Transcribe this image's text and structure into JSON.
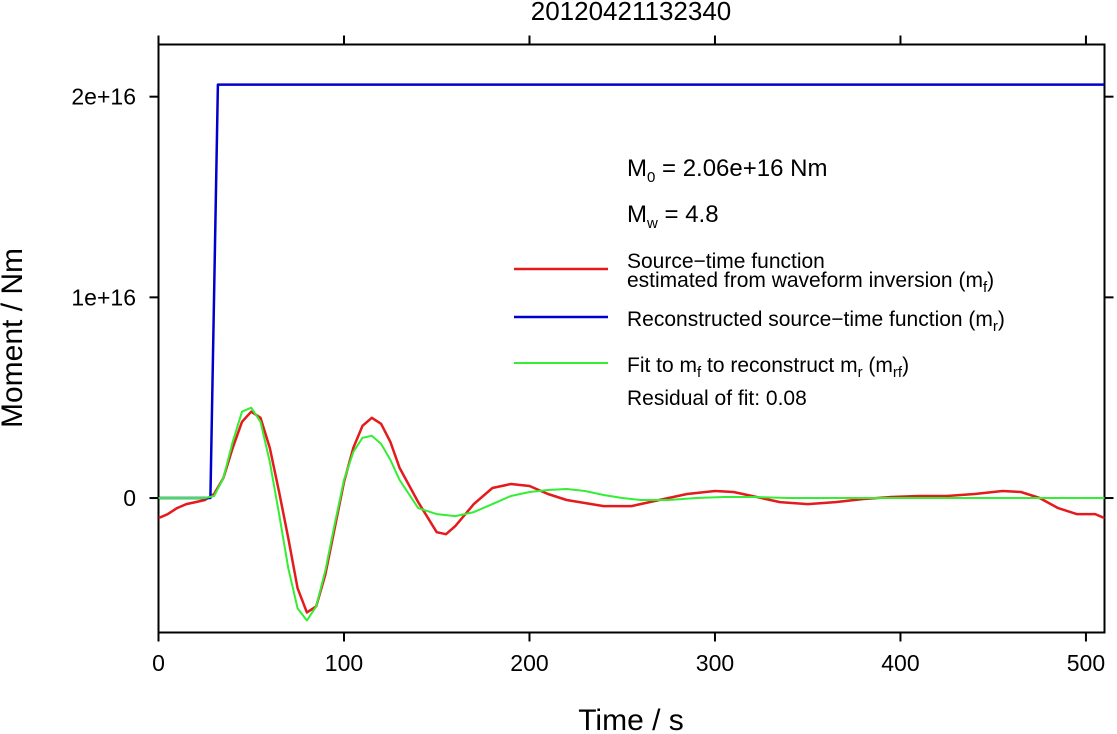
{
  "chart_data": {
    "type": "line",
    "title": "20120421132340",
    "xlabel": "Time / s",
    "ylabel": "Moment / Nm",
    "xlim": [
      0,
      510
    ],
    "ylim": [
      -6700000000000000.0,
      2.26e+16
    ],
    "x_ticks": [
      0,
      100,
      200,
      300,
      400,
      500
    ],
    "x_tick_labels": [
      "0",
      "100",
      "200",
      "300",
      "400",
      "500"
    ],
    "y_ticks": [
      0,
      1e+16,
      2e+16
    ],
    "y_tick_labels": [
      "0",
      "1e+16",
      "2e+16"
    ],
    "grid": false,
    "legend_position": "right",
    "annotations": {
      "m0": {
        "prefix": "M",
        "sub": "0",
        "suffix": " = 2.06e+16 Nm"
      },
      "mw": {
        "prefix": "M",
        "sub": "w",
        "suffix": " = 4.8"
      },
      "residual": "Residual of fit: 0.08"
    },
    "legend": [
      {
        "key": "red",
        "color": "#e41a1c",
        "line1": "Source−time function",
        "line2_prefix": "estimated from waveform inversion (m",
        "line2_sub": "f",
        "line2_suffix": ")"
      },
      {
        "key": "blue",
        "color": "#0000cc",
        "prefix": "Reconstructed source−time function (m",
        "sub": "r",
        "suffix": ")"
      },
      {
        "key": "green",
        "color": "#33ee33",
        "prefix": "Fit to m",
        "sub": "f",
        "middle": " to reconstruct m",
        "sub2": "r",
        "middle2": " (m",
        "sub3": "rf",
        "suffix": ")"
      }
    ],
    "series": [
      {
        "key": "red",
        "color": "#e41a1c",
        "x": [
          0,
          5,
          10,
          15,
          20,
          25,
          30,
          35,
          40,
          45,
          50,
          55,
          60,
          65,
          70,
          75,
          80,
          85,
          90,
          95,
          100,
          105,
          110,
          115,
          120,
          125,
          130,
          140,
          150,
          155,
          160,
          170,
          180,
          190,
          200,
          210,
          220,
          240,
          255,
          270,
          285,
          300,
          310,
          320,
          335,
          350,
          365,
          380,
          395,
          410,
          425,
          440,
          455,
          465,
          475,
          485,
          495,
          505,
          510
        ],
        "y": [
          -1000000000000000.0,
          -800000000000000.0,
          -500000000000000.0,
          -300000000000000.0,
          -200000000000000.0,
          -100000000000000.0,
          200000000000000.0,
          1000000000000000.0,
          2500000000000000.0,
          3800000000000000.0,
          4300000000000000.0,
          4000000000000000.0,
          2500000000000000.0,
          300000000000000.0,
          -2000000000000000.0,
          -4500000000000000.0,
          -5700000000000000.0,
          -5400000000000000.0,
          -3800000000000000.0,
          -1500000000000000.0,
          800000000000000.0,
          2500000000000000.0,
          3600000000000000.0,
          4000000000000000.0,
          3700000000000000.0,
          2800000000000000.0,
          1500000000000000.0,
          -200000000000000.0,
          -1700000000000000.0,
          -1800000000000000.0,
          -1400000000000000.0,
          -300000000000000.0,
          500000000000000.0,
          700000000000000.0,
          600000000000000.0,
          200000000000000.0,
          -100000000000000.0,
          -400000000000000.0,
          -400000000000000.0,
          -100000000000000.0,
          200000000000000.0,
          350000000000000.0,
          300000000000000.0,
          100000000000000.0,
          -200000000000000.0,
          -300000000000000.0,
          -200000000000000.0,
          -50000000000000.0,
          50000000000000.0,
          100000000000000.0,
          100000000000000.0,
          200000000000000.0,
          350000000000000.0,
          300000000000000.0,
          0.0,
          -500000000000000.0,
          -800000000000000.0,
          -800000000000000.0,
          -1000000000000000.0
        ]
      },
      {
        "key": "blue",
        "color": "#0000cc",
        "x": [
          0,
          28,
          32,
          510
        ],
        "y": [
          0,
          0,
          2.06e+16,
          2.06e+16
        ]
      },
      {
        "key": "green",
        "color": "#33ee33",
        "x": [
          0,
          25,
          30,
          35,
          40,
          45,
          50,
          55,
          60,
          65,
          70,
          75,
          80,
          85,
          90,
          95,
          100,
          105,
          110,
          115,
          120,
          125,
          130,
          140,
          150,
          160,
          170,
          180,
          190,
          200,
          210,
          220,
          230,
          240,
          250,
          260,
          275,
          290,
          305,
          320,
          340,
          360,
          380,
          400,
          430,
          460,
          510
        ],
        "y": [
          0,
          0,
          100000000000000.0,
          1000000000000000.0,
          2800000000000000.0,
          4300000000000000.0,
          4500000000000000.0,
          3800000000000000.0,
          1800000000000000.0,
          -800000000000000.0,
          -3500000000000000.0,
          -5500000000000000.0,
          -6100000000000000.0,
          -5400000000000000.0,
          -3600000000000000.0,
          -1300000000000000.0,
          900000000000000.0,
          2300000000000000.0,
          3000000000000000.0,
          3100000000000000.0,
          2700000000000000.0,
          1900000000000000.0,
          900000000000000.0,
          -500000000000000.0,
          -800000000000000.0,
          -900000000000000.0,
          -700000000000000.0,
          -300000000000000.0,
          100000000000000.0,
          300000000000000.0,
          400000000000000.0,
          450000000000000.0,
          350000000000000.0,
          150000000000000.0,
          0.0,
          -100000000000000.0,
          -100000000000000.0,
          0.0,
          50000000000000.0,
          50000000000000.0,
          0.0,
          0.0,
          0.0,
          0.0,
          0.0,
          0.0,
          0.0
        ]
      }
    ]
  }
}
